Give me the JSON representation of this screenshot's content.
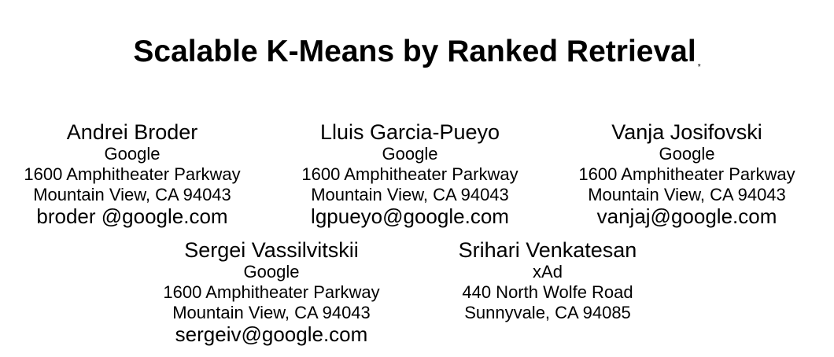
{
  "paper": {
    "title": "Scalable K-Means by Ranked Retrieval",
    "title_mark": "*"
  },
  "authors": [
    {
      "name": "Andrei Broder",
      "affiliation": "Google",
      "address1": "1600 Amphitheater Parkway",
      "address2": "Mountain View, CA 94043",
      "email": "broder @google.com"
    },
    {
      "name": "Lluis Garcia-Pueyo",
      "affiliation": "Google",
      "address1": "1600 Amphitheater Parkway",
      "address2": "Mountain View, CA 94043",
      "email": "lgpueyo@google.com"
    },
    {
      "name": "Vanja Josifovski",
      "affiliation": "Google",
      "address1": "1600 Amphitheater Parkway",
      "address2": "Mountain View, CA 94043",
      "email": "vanjaj@google.com"
    },
    {
      "name": "Sergei Vassilvitskii",
      "affiliation": "Google",
      "address1": "1600 Amphitheater Parkway",
      "address2": "Mountain View, CA 94043",
      "email": "sergeiv@google.com"
    },
    {
      "name": "Srihari Venkatesan",
      "affiliation": "xAd",
      "address1": "440 North Wolfe Road",
      "address2": "Sunnyvale, CA 94085",
      "email": ""
    }
  ]
}
